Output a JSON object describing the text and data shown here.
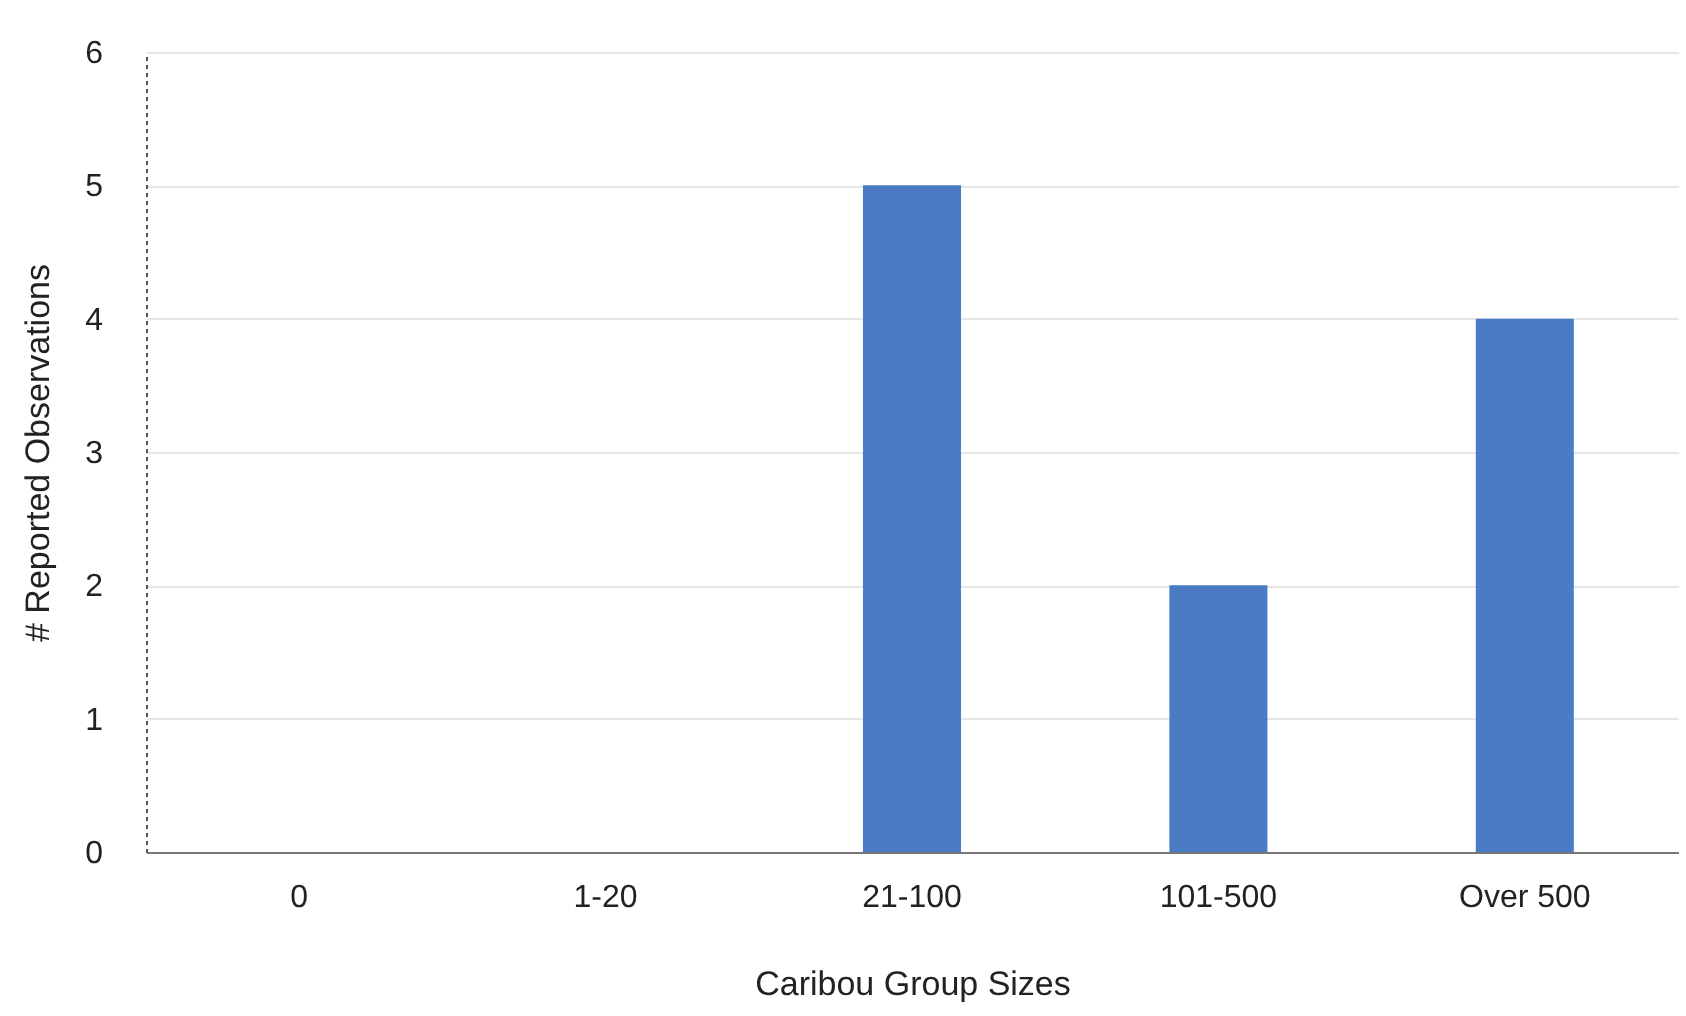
{
  "chart_data": {
    "type": "bar",
    "xlabel": "Caribou Group Sizes",
    "ylabel": "# Reported Observations",
    "categories": [
      "0",
      "1-20",
      "21-100",
      "101-500",
      "Over 500"
    ],
    "values": [
      0,
      0,
      5,
      2,
      4
    ],
    "color": "#4a7cc6",
    "ylim": [
      0,
      6
    ],
    "yticks": [
      0,
      1,
      2,
      3,
      4,
      5,
      6
    ],
    "grid": "y"
  }
}
